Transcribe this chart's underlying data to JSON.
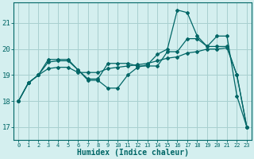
{
  "xlabel": "Humidex (Indice chaleur)",
  "bg_color": "#d4efef",
  "grid_color": "#a8d0d0",
  "line_color": "#006666",
  "xlim": [
    -0.5,
    23.5
  ],
  "ylim": [
    16.5,
    21.8
  ],
  "yticks": [
    17,
    18,
    19,
    20,
    21
  ],
  "xticks": [
    0,
    1,
    2,
    3,
    4,
    5,
    6,
    7,
    8,
    9,
    10,
    11,
    12,
    13,
    14,
    15,
    16,
    17,
    18,
    19,
    20,
    21,
    22,
    23
  ],
  "series": [
    [
      18.0,
      18.7,
      19.0,
      19.6,
      19.6,
      19.6,
      19.2,
      18.8,
      18.8,
      18.5,
      18.5,
      19.0,
      19.3,
      19.4,
      19.8,
      20.0,
      21.5,
      21.4,
      20.5,
      20.1,
      20.5,
      20.5,
      18.2,
      17.0
    ],
    [
      18.0,
      18.7,
      19.0,
      19.5,
      19.55,
      19.55,
      19.2,
      18.85,
      18.85,
      19.45,
      19.45,
      19.45,
      19.35,
      19.35,
      19.35,
      19.9,
      19.9,
      20.4,
      20.4,
      20.1,
      20.1,
      20.1,
      19.0,
      17.0
    ],
    [
      18.0,
      18.7,
      19.0,
      19.25,
      19.3,
      19.3,
      19.1,
      19.1,
      19.1,
      19.25,
      19.3,
      19.35,
      19.4,
      19.45,
      19.55,
      19.65,
      19.7,
      19.85,
      19.9,
      20.0,
      20.0,
      20.05,
      19.0,
      17.0
    ]
  ]
}
